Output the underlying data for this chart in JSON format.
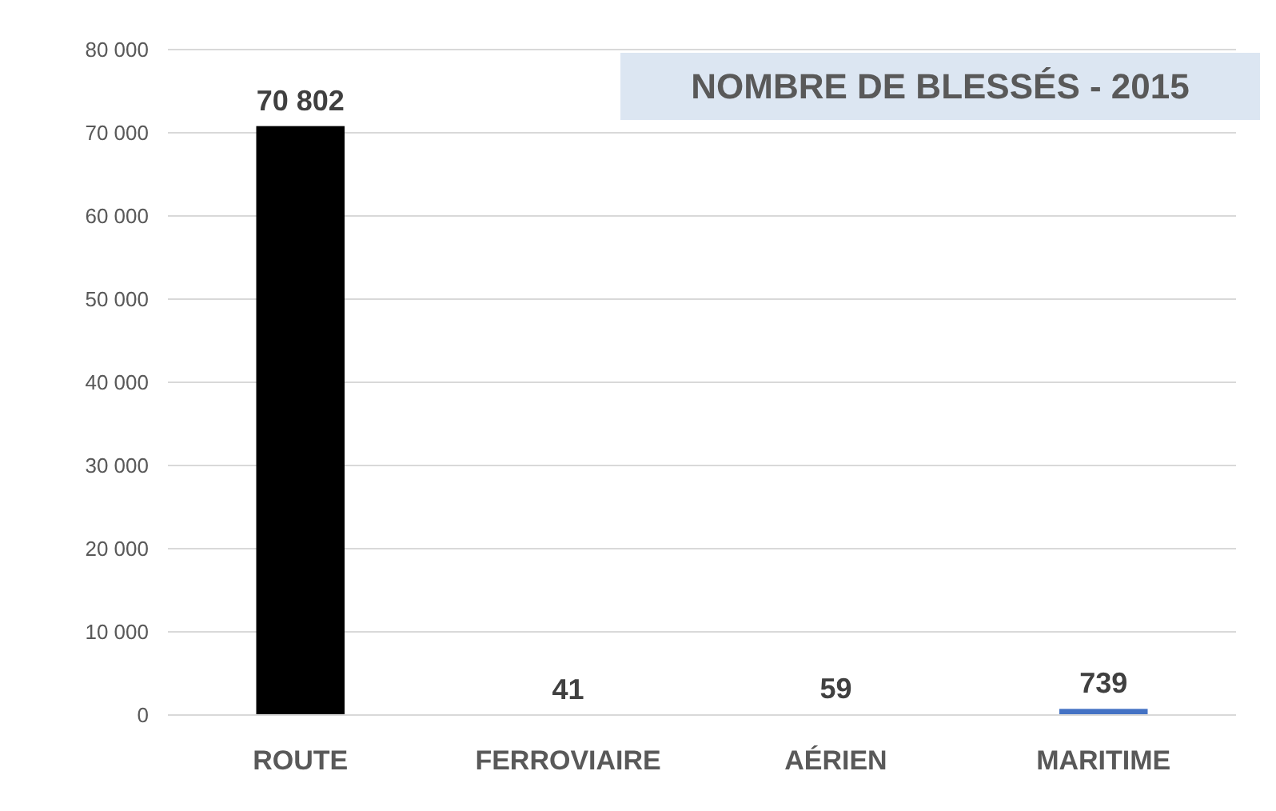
{
  "chart_data": {
    "type": "bar",
    "title": "NOMBRE DE BLESSÉS - 2015",
    "categories": [
      "ROUTE",
      "FERROVIAIRE",
      "AÉRIEN",
      "MARITIME"
    ],
    "values": [
      70802,
      41,
      59,
      739
    ],
    "colors": [
      "#000000",
      "#ff4b1f",
      "#ffff00",
      "#4472c4"
    ],
    "value_labels": [
      "70 802",
      "41",
      "59",
      "739"
    ],
    "ylim": [
      0,
      80000
    ],
    "yticks": [
      {
        "value": 0,
        "label": "0"
      },
      {
        "value": 10000,
        "label": "10 000"
      },
      {
        "value": 20000,
        "label": "20 000"
      },
      {
        "value": 30000,
        "label": "30 000"
      },
      {
        "value": 40000,
        "label": "40 000"
      },
      {
        "value": 50000,
        "label": "50 000"
      },
      {
        "value": 60000,
        "label": "60 000"
      },
      {
        "value": 70000,
        "label": "70 000"
      },
      {
        "value": 80000,
        "label": "80 000"
      }
    ],
    "grid": "y"
  }
}
